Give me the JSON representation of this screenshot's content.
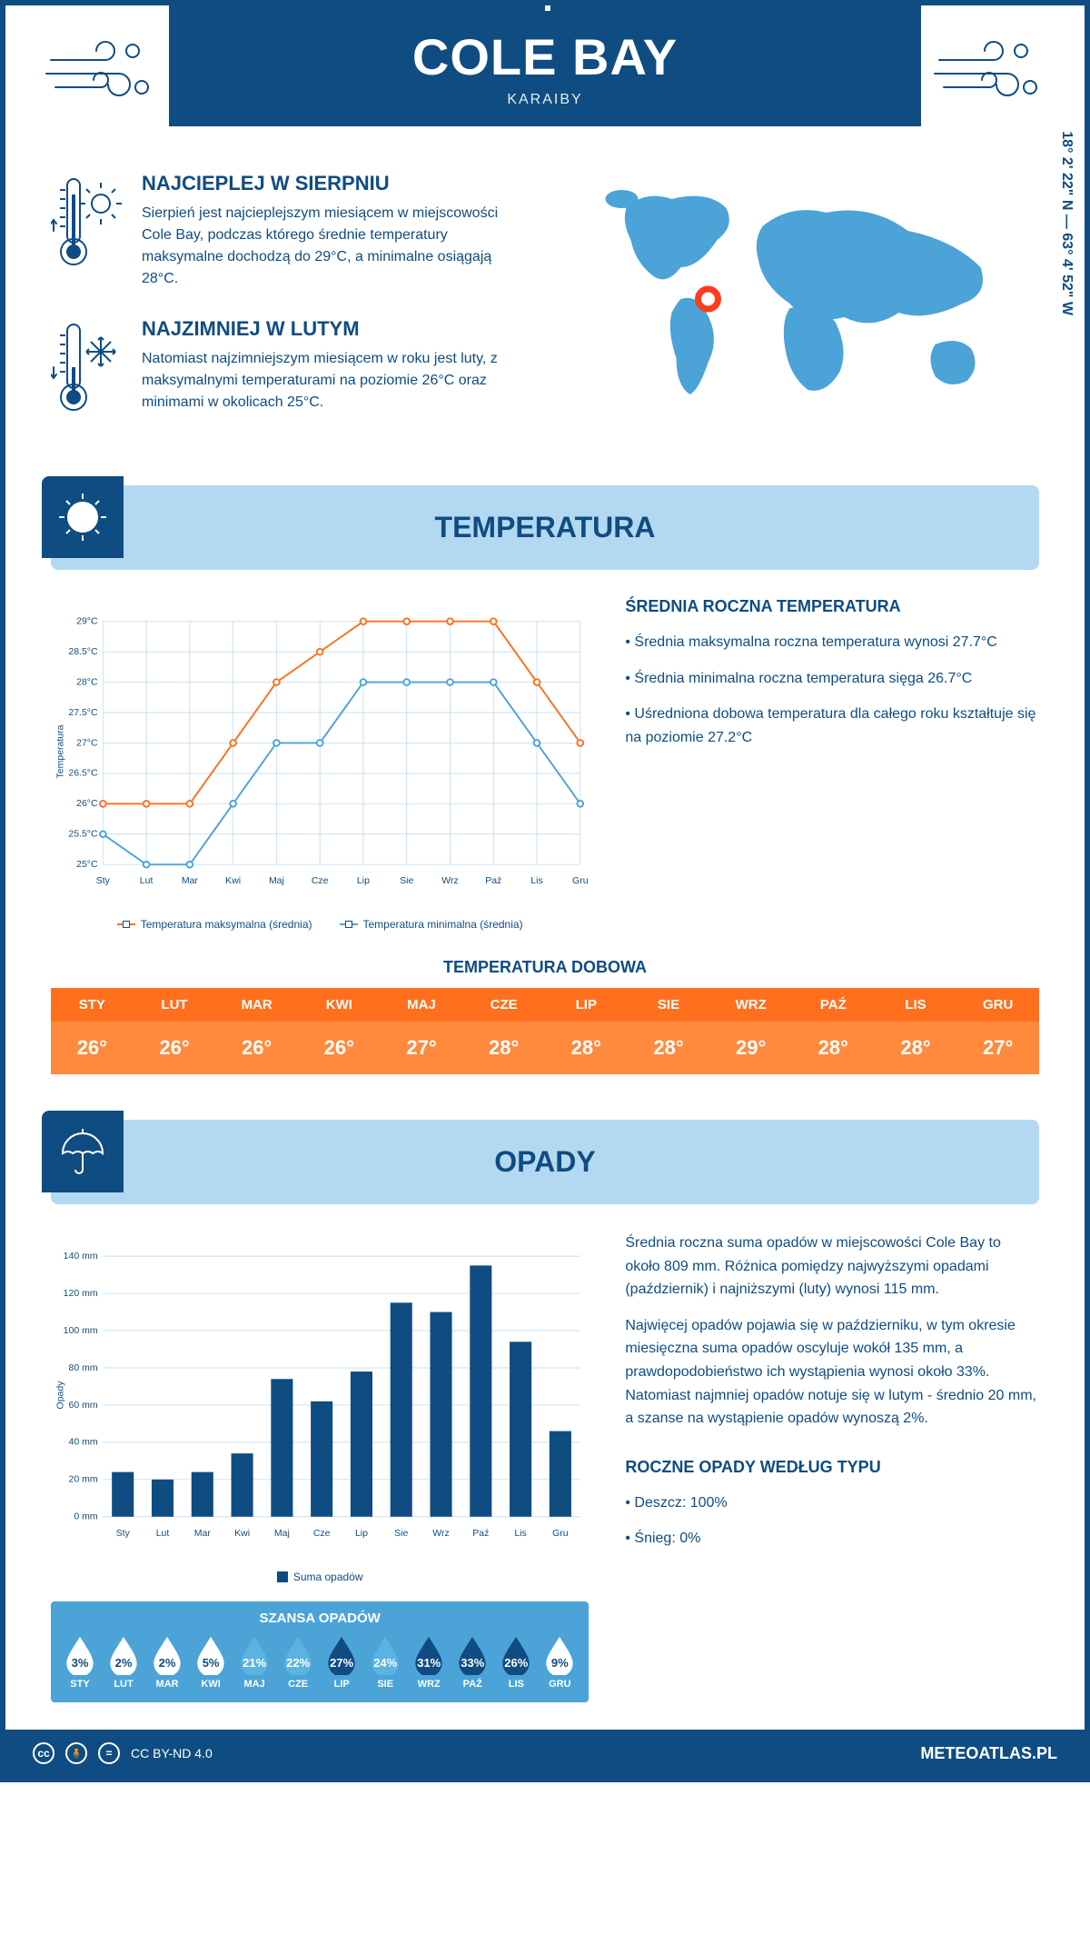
{
  "header": {
    "title": "COLE BAY",
    "subtitle": "KARAIBY"
  },
  "coords": "18° 2' 22\" N — 63° 4' 52\" W",
  "facts": {
    "hot": {
      "title": "NAJCIEPLEJ W SIERPNIU",
      "text": "Sierpień jest najcieplejszym miesiącem w miejscowości Cole Bay, podczas którego średnie temperatury maksymalne dochodzą do 29°C, a minimalne osiągają 28°C."
    },
    "cold": {
      "title": "NAJZIMNIEJ W LUTYM",
      "text": "Natomiast najzimniejszym miesiącem w roku jest luty, z maksymalnymi temperaturami na poziomie 26°C oraz minimami w okolicach 25°C."
    }
  },
  "temperature": {
    "section_title": "TEMPERATURA",
    "chart": {
      "type": "line",
      "months": [
        "Sty",
        "Lut",
        "Mar",
        "Kwi",
        "Maj",
        "Cze",
        "Lip",
        "Sie",
        "Wrz",
        "Paź",
        "Lis",
        "Gru"
      ],
      "max_series": {
        "label": "Temperatura maksymalna (średnia)",
        "color": "#ff6f1e",
        "values": [
          26,
          26,
          26,
          27,
          28,
          28.5,
          29,
          29,
          29,
          29,
          28,
          27
        ]
      },
      "min_series": {
        "label": "Temperatura minimalna (średnia)",
        "color": "#4ba3d8",
        "values": [
          25.5,
          25,
          25,
          26,
          27,
          27,
          28,
          28,
          28,
          28,
          27,
          26
        ]
      },
      "ylim": [
        25,
        29
      ],
      "ytick_step": 0.5,
      "yticks": [
        "25°C",
        "25.5°C",
        "26°C",
        "26.5°C",
        "27°C",
        "27.5°C",
        "28°C",
        "28.5°C",
        "29°C"
      ],
      "ylabel": "Temperatura",
      "grid_color": "#c9dff0",
      "background": "#ffffff"
    },
    "summary": {
      "title": "ŚREDNIA ROCZNA TEMPERATURA",
      "bullets": [
        "Średnia maksymalna roczna temperatura wynosi 27.7°C",
        "Średnia minimalna roczna temperatura sięga 26.7°C",
        "Uśredniona dobowa temperatura dla całego roku kształtuje się na poziomie 27.2°C"
      ]
    },
    "daily": {
      "title": "TEMPERATURA DOBOWA",
      "months": [
        "STY",
        "LUT",
        "MAR",
        "KWI",
        "MAJ",
        "CZE",
        "LIP",
        "SIE",
        "WRZ",
        "PAŹ",
        "LIS",
        "GRU"
      ],
      "values": [
        "26°",
        "26°",
        "26°",
        "26°",
        "27°",
        "28°",
        "28°",
        "28°",
        "29°",
        "28°",
        "28°",
        "27°"
      ],
      "header_bg": "#ff6f1e",
      "value_bg": "#ff8a3d"
    }
  },
  "precipitation": {
    "section_title": "OPADY",
    "chart": {
      "type": "bar",
      "months": [
        "Sty",
        "Lut",
        "Mar",
        "Kwi",
        "Maj",
        "Cze",
        "Lip",
        "Sie",
        "Wrz",
        "Paź",
        "Lis",
        "Gru"
      ],
      "values": [
        24,
        20,
        24,
        34,
        74,
        62,
        78,
        115,
        110,
        135,
        94,
        46
      ],
      "ylim": [
        0,
        140
      ],
      "ytick_step": 20,
      "yticks": [
        "0 mm",
        "20 mm",
        "40 mm",
        "60 mm",
        "80 mm",
        "100 mm",
        "120 mm",
        "140 mm"
      ],
      "ylabel": "Opady",
      "bar_color": "#0f4c81",
      "grid_color": "#c9dff0",
      "legend": "Suma opadów"
    },
    "summary": {
      "para1": "Średnia roczna suma opadów w miejscowości Cole Bay to około 809 mm. Różnica pomiędzy najwyższymi opadami (październik) i najniższymi (luty) wynosi 115 mm.",
      "para2": "Najwięcej opadów pojawia się w październiku, w tym okresie miesięczna suma opadów oscyluje wokół 135 mm, a prawdopodobieństwo ich wystąpienia wynosi około 33%. Natomiast najmniej opadów notuje się w lutym - średnio 20 mm, a szanse na wystąpienie opadów wynoszą 2%."
    },
    "chance": {
      "title": "SZANSA OPADÓW",
      "months": [
        "STY",
        "LUT",
        "MAR",
        "KWI",
        "MAJ",
        "CZE",
        "LIP",
        "SIE",
        "WRZ",
        "PAŹ",
        "LIS",
        "GRU"
      ],
      "values": [
        3,
        2,
        2,
        5,
        21,
        22,
        27,
        24,
        31,
        33,
        26,
        9
      ],
      "low_fill": "#ffffff",
      "low_text": "#0f4c81",
      "mid_fill": "#5bb3e0",
      "mid_text": "#ffffff",
      "high_fill": "#0f4c81",
      "high_text": "#ffffff"
    },
    "by_type": {
      "title": "ROCZNE OPADY WEDŁUG TYPU",
      "bullets": [
        "Deszcz: 100%",
        "Śnieg: 0%"
      ]
    }
  },
  "footer": {
    "license": "CC BY-ND 4.0",
    "site": "METEOATLAS.PL"
  },
  "colors": {
    "primary": "#0f4c81",
    "light_blue": "#b3d9f2",
    "accent_blue": "#4ba3d8",
    "orange": "#ff6f1e"
  }
}
